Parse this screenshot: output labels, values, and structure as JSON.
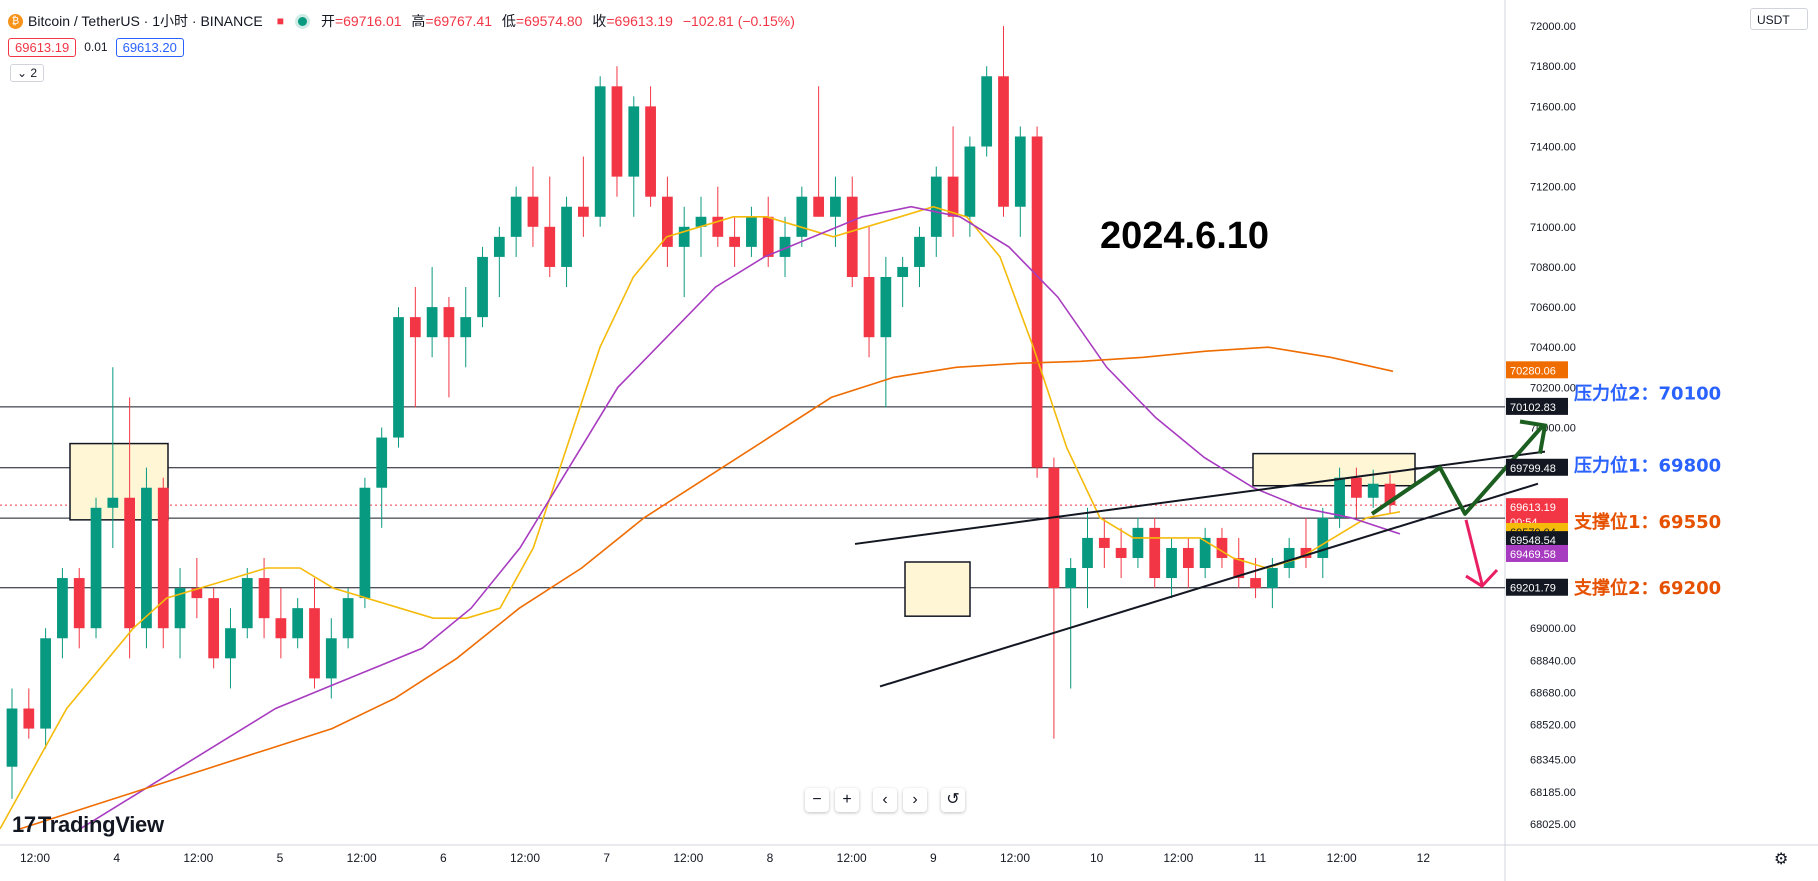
{
  "header": {
    "symbol": "Bitcoin / TetherUS · 1小时 · BINANCE",
    "open_label": "开",
    "open": "=69716.01",
    "high_label": "高",
    "high": "=69767.41",
    "low_label": "低",
    "low": "=69574.80",
    "close_label": "收",
    "close": "=69613.19",
    "change": "−102.81 (−0.15%)"
  },
  "quote": {
    "sell": "69613.19",
    "spread": "0.01",
    "buy": "69613.20"
  },
  "indicators_toggle": "2",
  "currency": "USDT",
  "logo_text": "TradingView",
  "colors": {
    "up": "#089981",
    "down": "#f23645",
    "ma_short": "#f5bb0a",
    "ma_mid": "#a83cc0",
    "ma_long": "#ef6c00"
  },
  "chart_data": {
    "type": "candlestick",
    "title": "2024.6.10",
    "ylim": [
      67920,
      72130
    ],
    "y_ticks": [
      "72000.00",
      "71800.00",
      "71600.00",
      "71400.00",
      "71200.00",
      "71000.00",
      "70800.00",
      "70600.00",
      "70400.00",
      "70200.00",
      "70000.00",
      "69000.00",
      "68840.00",
      "68680.00",
      "68520.00",
      "68345.00",
      "68185.00",
      "68025.00"
    ],
    "x_ticks": [
      "12:00",
      "4",
      "12:00",
      "5",
      "12:00",
      "6",
      "12:00",
      "7",
      "12:00",
      "8",
      "12:00",
      "9",
      "12:00",
      "10",
      "12:00",
      "11",
      "12:00",
      "12"
    ],
    "horizontal_levels": [
      70102.83,
      69799.48,
      69548.54,
      69201.79
    ],
    "price_labels": [
      {
        "text": "70280.06",
        "color": "#ef6c00"
      },
      {
        "text": "70102.83",
        "color": "#131722"
      },
      {
        "text": "69799.48",
        "color": "#131722"
      },
      {
        "text": "69613.19",
        "color": "#f23645"
      },
      {
        "text": "00:54",
        "color": "#f23645"
      },
      {
        "text": "69579.04",
        "color": "#f5bb0a"
      },
      {
        "text": "69548.54",
        "color": "#131722"
      },
      {
        "text": "69469.58",
        "color": "#a83cc0"
      },
      {
        "text": "69201.79",
        "color": "#131722"
      }
    ],
    "annotations": [
      {
        "text": "压力位2：70100",
        "color": "#2962ff"
      },
      {
        "text": "压力位1：69800",
        "color": "#2962ff"
      },
      {
        "text": "支撑位1：69550",
        "color": "#e65100"
      },
      {
        "text": "支撑位2：69200",
        "color": "#e65100"
      }
    ],
    "series": [
      {
        "values": [
          [
            68310,
            68700,
            68150,
            68600
          ],
          [
            68600,
            68700,
            68450,
            68500
          ],
          [
            68500,
            69000,
            68400,
            68950
          ],
          [
            68950,
            69300,
            68850,
            69250
          ],
          [
            69250,
            69300,
            68900,
            69000
          ],
          [
            69000,
            69650,
            68950,
            69600
          ],
          [
            69600,
            70300,
            69400,
            69650
          ],
          [
            69650,
            70150,
            68850,
            69000
          ],
          [
            69000,
            69800,
            68900,
            69700
          ],
          [
            69700,
            69750,
            68900,
            69000
          ],
          [
            69000,
            69300,
            68850,
            69200
          ],
          [
            69200,
            69350,
            69050,
            69150
          ],
          [
            69150,
            69200,
            68800,
            68850
          ],
          [
            68850,
            69100,
            68700,
            69000
          ],
          [
            69000,
            69300,
            68950,
            69250
          ],
          [
            69250,
            69350,
            68950,
            69050
          ],
          [
            69050,
            69200,
            68850,
            68950
          ],
          [
            68950,
            69150,
            68900,
            69100
          ],
          [
            69100,
            69250,
            68700,
            68750
          ],
          [
            68750,
            69050,
            68650,
            68950
          ],
          [
            68950,
            69200,
            68900,
            69150
          ],
          [
            69150,
            69750,
            69100,
            69700
          ],
          [
            69700,
            70000,
            69500,
            69950
          ],
          [
            69950,
            70600,
            69900,
            70550
          ],
          [
            70550,
            70700,
            70100,
            70450
          ],
          [
            70450,
            70800,
            70350,
            70600
          ],
          [
            70600,
            70650,
            70150,
            70450
          ],
          [
            70450,
            70700,
            70300,
            70550
          ],
          [
            70550,
            70900,
            70500,
            70850
          ],
          [
            70850,
            71000,
            70650,
            70950
          ],
          [
            70950,
            71200,
            70850,
            71150
          ],
          [
            71150,
            71300,
            70900,
            71000
          ],
          [
            71000,
            71250,
            70750,
            70800
          ],
          [
            70800,
            71150,
            70700,
            71100
          ],
          [
            71100,
            71350,
            70950,
            71050
          ],
          [
            71050,
            71750,
            71000,
            71700
          ],
          [
            71700,
            71800,
            71150,
            71250
          ],
          [
            71250,
            71650,
            71050,
            71600
          ],
          [
            71600,
            71700,
            71100,
            71150
          ],
          [
            71150,
            71250,
            70800,
            70900
          ],
          [
            70900,
            71100,
            70650,
            71000
          ],
          [
            71000,
            71150,
            70850,
            71050
          ],
          [
            71050,
            71200,
            70900,
            70950
          ],
          [
            70950,
            71050,
            70800,
            70900
          ],
          [
            70900,
            71100,
            70850,
            71050
          ],
          [
            71050,
            71150,
            70800,
            70850
          ],
          [
            70850,
            71050,
            70750,
            70950
          ],
          [
            70950,
            71200,
            70900,
            71150
          ],
          [
            71150,
            71700,
            71050,
            71050
          ],
          [
            71050,
            71250,
            70900,
            71150
          ],
          [
            71150,
            71250,
            70700,
            70750
          ],
          [
            70750,
            71000,
            70350,
            70450
          ],
          [
            70450,
            70850,
            70100,
            70750
          ],
          [
            70750,
            70850,
            70600,
            70800
          ],
          [
            70800,
            71000,
            70700,
            70950
          ],
          [
            70950,
            71300,
            70850,
            71250
          ],
          [
            71250,
            71500,
            70950,
            71050
          ],
          [
            71050,
            71450,
            70950,
            71400
          ],
          [
            71400,
            71800,
            71350,
            71750
          ],
          [
            71750,
            72000,
            71050,
            71100
          ],
          [
            71100,
            71500,
            70950,
            71450
          ],
          [
            71450,
            71500,
            69750,
            69800
          ],
          [
            69800,
            69850,
            68450,
            69200
          ],
          [
            69200,
            69350,
            68700,
            69300
          ],
          [
            69300,
            69600,
            69100,
            69450
          ],
          [
            69450,
            69550,
            69300,
            69400
          ],
          [
            69400,
            69500,
            69250,
            69350
          ],
          [
            69350,
            69550,
            69300,
            69500
          ],
          [
            69500,
            69550,
            69200,
            69250
          ],
          [
            69250,
            69450,
            69150,
            69400
          ],
          [
            69400,
            69450,
            69200,
            69300
          ],
          [
            69300,
            69500,
            69250,
            69450
          ],
          [
            69450,
            69500,
            69300,
            69350
          ],
          [
            69350,
            69450,
            69200,
            69250
          ],
          [
            69250,
            69350,
            69150,
            69200
          ],
          [
            69200,
            69350,
            69100,
            69300
          ],
          [
            69300,
            69450,
            69250,
            69400
          ],
          [
            69400,
            69550,
            69300,
            69350
          ],
          [
            69350,
            69600,
            69250,
            69550
          ],
          [
            69550,
            69800,
            69500,
            69750
          ],
          [
            69750,
            69800,
            69550,
            69650
          ],
          [
            69650,
            69790,
            69600,
            69720
          ],
          [
            69720,
            69767,
            69574,
            69613
          ]
        ]
      }
    ],
    "ma_short": [
      68000,
      68300,
      68600,
      68800,
      69000,
      69150,
      69200,
      69250,
      69300,
      69300,
      69200,
      69150,
      69100,
      69050,
      69050,
      69100,
      69400,
      69900,
      70400,
      70750,
      70950,
      71000,
      71050,
      71050,
      71000,
      70950,
      71000,
      71050,
      71100,
      71050,
      70850,
      70400,
      69900,
      69550,
      69450,
      69450,
      69450,
      69350,
      69300,
      69350,
      69450,
      69550,
      69580
    ],
    "ma_mid": [
      68000,
      68150,
      68300,
      68450,
      68600,
      68700,
      68800,
      68900,
      69100,
      69400,
      69800,
      70200,
      70450,
      70700,
      70850,
      70950,
      71050,
      71100,
      71050,
      70900,
      70650,
      70300,
      70050,
      69850,
      69700,
      69600,
      69550,
      69470
    ],
    "ma_long": [
      68000,
      68100,
      68200,
      68300,
      68400,
      68500,
      68650,
      68850,
      69100,
      69300,
      69550,
      69750,
      69950,
      70150,
      70250,
      70300,
      70320,
      70330,
      70350,
      70380,
      70400,
      70350,
      70280
    ],
    "trendlines": [
      {
        "label": "upper",
        "from": [
          0,
          69420
        ],
        "to": [
          1,
          69880
        ]
      },
      {
        "label": "lower",
        "from": [
          0,
          68710
        ],
        "to": [
          1,
          69720
        ]
      }
    ]
  }
}
